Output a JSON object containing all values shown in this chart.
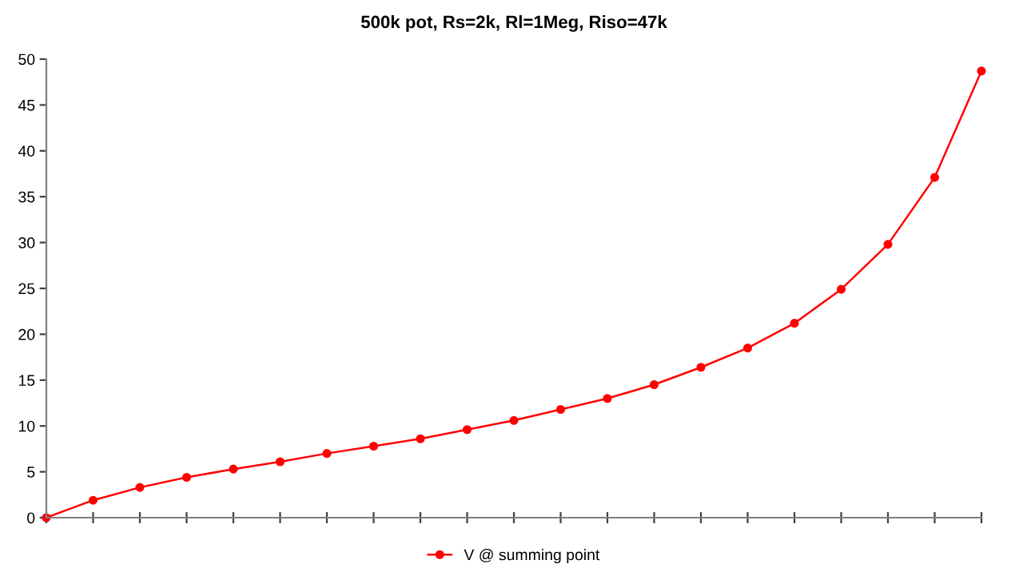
{
  "chart_data": {
    "type": "line",
    "title": "500k pot, Rs=2k, Rl=1Meg, Riso=47k",
    "categories": [
      null,
      null,
      null,
      null,
      null,
      null,
      null,
      null,
      null,
      null,
      null,
      null,
      null,
      null,
      null,
      null,
      null,
      null,
      null,
      null,
      null
    ],
    "series": [
      {
        "name": "V @ summing point",
        "color": "#ff0000",
        "values": [
          0,
          1.9,
          3.3,
          4.4,
          5.3,
          6.1,
          7.0,
          7.8,
          8.6,
          9.6,
          10.6,
          11.8,
          13.0,
          14.5,
          16.4,
          18.5,
          21.2,
          24.9,
          29.8,
          37.1,
          48.7
        ]
      }
    ],
    "ylim": [
      0,
      50
    ],
    "yticks": [
      0,
      5,
      10,
      15,
      20,
      25,
      30,
      35,
      40,
      45,
      50
    ],
    "tick_labels": "y",
    "grid": false,
    "legend": "bottom",
    "marker": "circle",
    "line_style": "solid"
  }
}
